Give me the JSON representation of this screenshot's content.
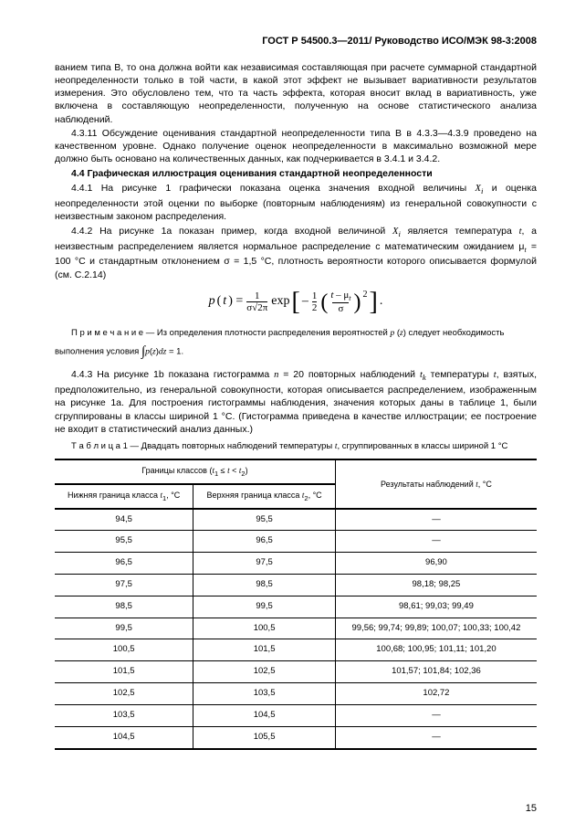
{
  "header": "ГОСТ Р 54500.3—2011/ Руководство ИСО/МЭК 98-3:2008",
  "p1": "ванием типа В, то она должна войти как независимая составляющая при расчете суммарной стандартной неопределенности только в той части, в какой этот эффект не вызывает вариативности результатов измерения. Это обусловлено тем, что та часть эффекта, которая вносит вклад в вариативность, уже включена в составляющую неопределенности, полученную на основе статистического анализа наблюдений.",
  "p2": "4.3.11 Обсуждение оценивания стандартной неопределенности типа В в 4.3.3—4.3.9 проведено на качественном уровне. Однако получение оценок неопределенности в максимально возможной мере должно быть основано на количественных данных, как подчеркивается в 3.4.1 и 3.4.2.",
  "sec_title": "4.4 Графическая иллюстрация оценивания стандартной неопределенности",
  "p3a": "4.4.1 На рисунке 1 графически показана оценка значения входной величины ",
  "p3b": " и оценка неопределенности этой оценки по выборке (повторным наблюдениям) из генеральной совокупности с неизвестным законом распределения.",
  "p4a": "4.4.2 На рисунке 1а показан пример, когда входной величиной ",
  "p4b": " является температура ",
  "p4c": ", а неизвестным распределением является нормальное распределение с математическим ожиданием μ",
  "p4d": " = 100 °C и стандартным отклонением σ = 1,5 °C, плотность вероятности которого описывается формулой (см. C.2.14)",
  "note1a": "П р и м е ч а н и е — Из определения плотности распределения вероятностей  ",
  "note1b": " следует необходимость",
  "note2a": "выполнения условия   ",
  "note2b": " = 1.",
  "p5a": "4.4.3 На рисунке 1b показана гистограмма  ",
  "p5b": " = 20 повторных наблюдений ",
  "p5c": " температуры ",
  "p5d": ", взятых, предположительно, из генеральной совокупности, которая описывается распределением, изображенным на рисунке 1а. Для построения гистограммы наблюдения, значения которых даны в таблице 1, были сгруппированы в классы шириной 1 °C. (Гистограмма приведена в качестве иллюстрации; ее построение не входит в статистический анализ данных.)",
  "tcap_a": "Т а б л и ц а  1 — Двадцать повторных наблюдений температуры  ",
  "tcap_b": ",  сгруппированных в классы шириной 1 °C",
  "th_main": "Границы классов (",
  "th_main2": ")",
  "th_res": "Результаты наблюдений  ",
  "th_res2": ", °C",
  "th_low": "Нижняя граница класса ",
  "th_low2": ", °C",
  "th_up": "Верхняя граница класса ",
  "th_up2": ", °C",
  "rows": [
    {
      "c1": "94,5",
      "c2": "95,5",
      "c3": "—"
    },
    {
      "c1": "95,5",
      "c2": "96,5",
      "c3": "—"
    },
    {
      "c1": "96,5",
      "c2": "97,5",
      "c3": "96,90"
    },
    {
      "c1": "97,5",
      "c2": "98,5",
      "c3": "98,18; 98,25"
    },
    {
      "c1": "98,5",
      "c2": "99,5",
      "c3": "98,61; 99,03; 99,49"
    },
    {
      "c1": "99,5",
      "c2": "100,5",
      "c3": "99,56; 99,74; 99,89; 100,07; 100,33; 100,42"
    },
    {
      "c1": "100,5",
      "c2": "101,5",
      "c3": "100,68; 100,95; 101,11; 101,20"
    },
    {
      "c1": "101,5",
      "c2": "102,5",
      "c3": "101,57; 101,84; 102,36"
    },
    {
      "c1": "102,5",
      "c2": "103,5",
      "c3": "102,72"
    },
    {
      "c1": "103,5",
      "c2": "104,5",
      "c3": "—"
    },
    {
      "c1": "104,5",
      "c2": "105,5",
      "c3": "—"
    }
  ],
  "pagenum": "15"
}
